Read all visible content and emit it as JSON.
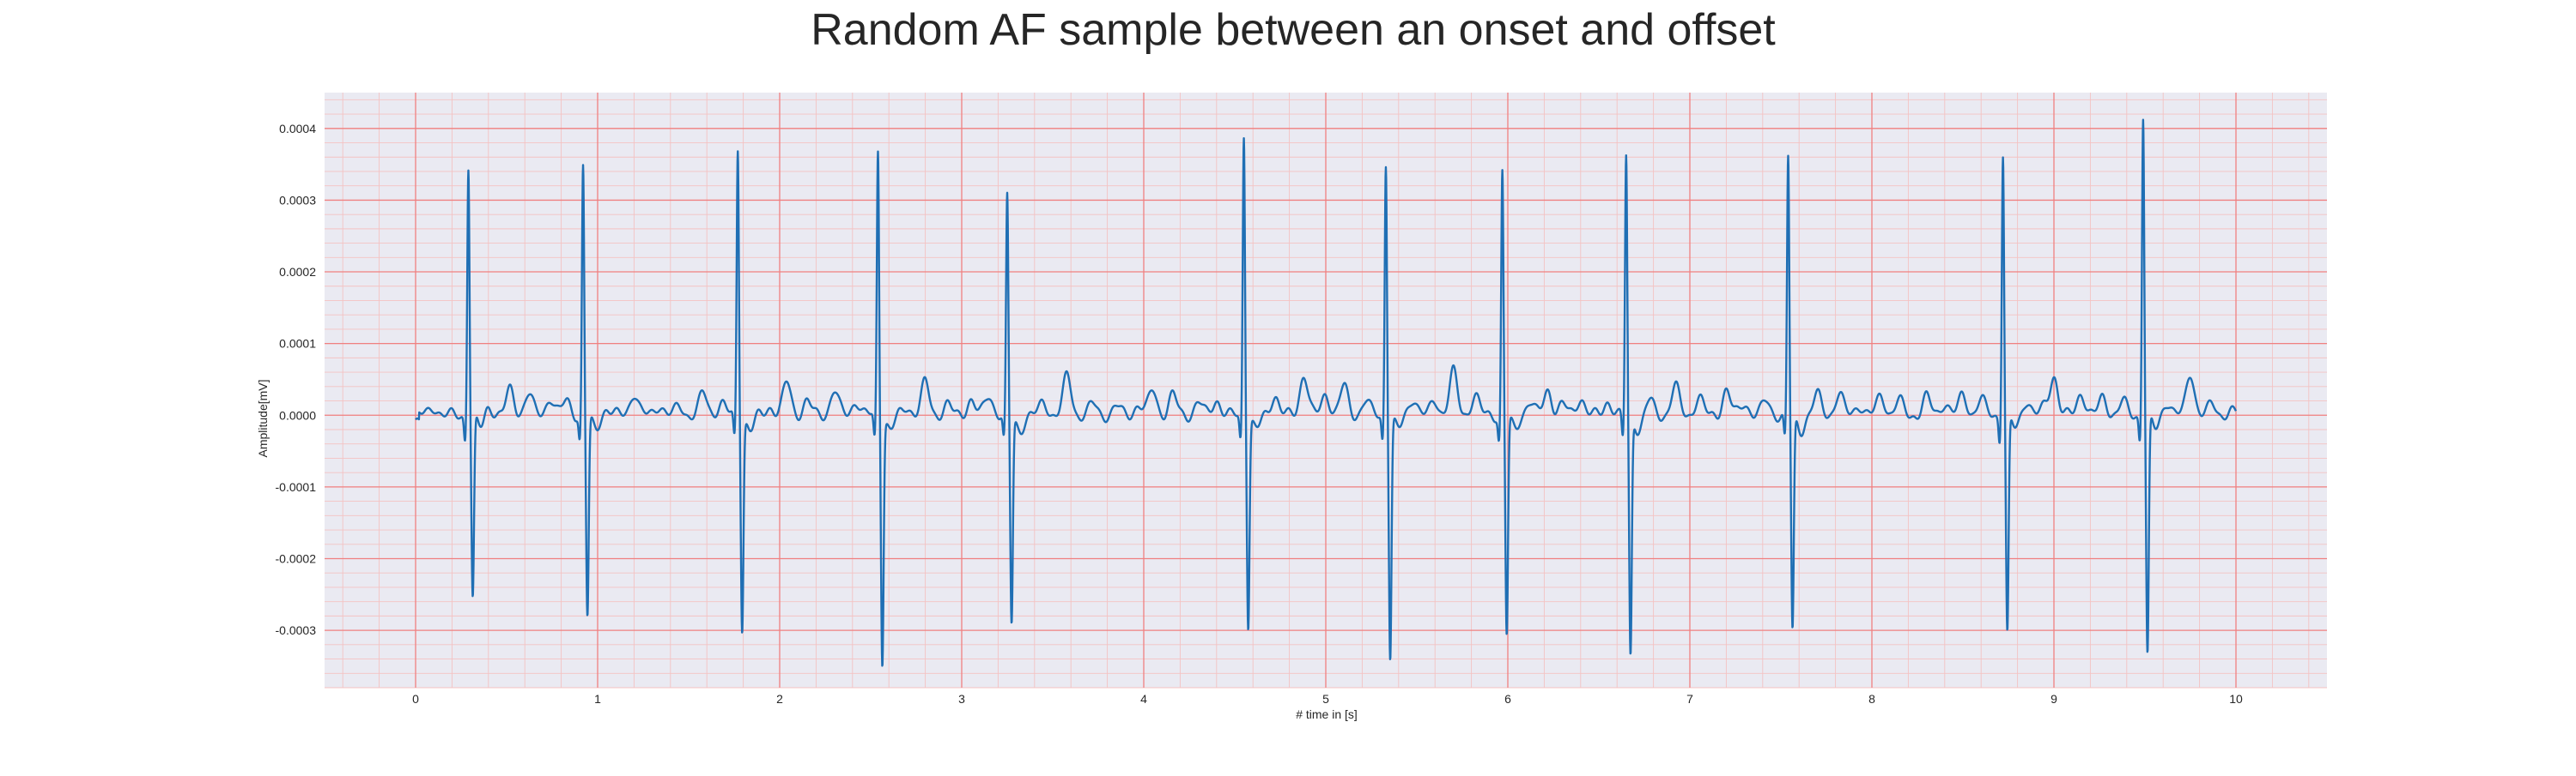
{
  "chart_data": {
    "type": "line",
    "title": "Random AF sample between an onset and offset",
    "xlabel": "# time in [s]",
    "ylabel": "Amplitude[mV]",
    "xlim": [
      -0.5,
      10.5
    ],
    "ylim": [
      -0.00038,
      0.00045
    ],
    "x_ticks": [
      0,
      1,
      2,
      3,
      4,
      5,
      6,
      7,
      8,
      9,
      10
    ],
    "x_tick_labels": [
      "0",
      "1",
      "2",
      "3",
      "4",
      "5",
      "6",
      "7",
      "8",
      "9",
      "10"
    ],
    "y_ticks": [
      0.0004,
      0.0003,
      0.0002,
      0.0001,
      0.0,
      -0.0001,
      -0.0002,
      -0.0003
    ],
    "y_tick_labels": [
      "0.0004",
      "0.0003",
      "0.0002",
      "0.0001",
      "0.0000",
      "-0.0001",
      "-0.0002",
      "-0.0003"
    ],
    "grid": true,
    "minor_grid": true,
    "grid_major_color": "#f08080",
    "grid_minor_color": "#f4c2c2",
    "background_color": "#eaeaf2",
    "line_color": "#1f6fb4",
    "beats": [
      {
        "t": 0.29,
        "peak": 0.00035,
        "trough": -0.000255
      },
      {
        "t": 0.92,
        "peak": 0.000348,
        "trough": -0.00028
      },
      {
        "t": 1.77,
        "peak": 0.000372,
        "trough": -0.000295
      },
      {
        "t": 2.54,
        "peak": 0.00037,
        "trough": -0.00034
      },
      {
        "t": 3.25,
        "peak": 0.000303,
        "trough": -0.00029
      },
      {
        "t": 4.55,
        "peak": 0.000392,
        "trough": -0.00029
      },
      {
        "t": 5.33,
        "peak": 0.000353,
        "trough": -0.000335
      },
      {
        "t": 5.97,
        "peak": 0.000342,
        "trough": -0.000305
      },
      {
        "t": 6.65,
        "peak": 0.000363,
        "trough": -0.000335
      },
      {
        "t": 7.54,
        "peak": 0.00036,
        "trough": -0.0003
      },
      {
        "t": 8.72,
        "peak": 0.000368,
        "trough": -0.000305
      },
      {
        "t": 9.49,
        "peak": 0.00042,
        "trough": -0.000335
      }
    ],
    "fibrillation_waves": [
      [
        0.1,
        1.2e-05
      ],
      [
        0.4,
        1.5e-05
      ],
      [
        0.52,
        3.5e-05
      ],
      [
        0.62,
        3e-05
      ],
      [
        0.74,
        2.5e-05
      ],
      [
        0.83,
        2e-05
      ],
      [
        1.05,
        1e-05
      ],
      [
        1.2,
        3.2e-05
      ],
      [
        1.34,
        1.5e-05
      ],
      [
        1.45,
        1.2e-05
      ],
      [
        1.58,
        3e-05
      ],
      [
        1.68,
        1.8e-05
      ],
      [
        1.95,
        1.2e-05
      ],
      [
        2.04,
        4.5e-05
      ],
      [
        2.15,
        2e-05
      ],
      [
        2.3,
        3.5e-05
      ],
      [
        2.42,
        2e-05
      ],
      [
        2.7,
        1.2e-05
      ],
      [
        2.8,
        4.5e-05
      ],
      [
        2.92,
        1.5e-05
      ],
      [
        3.05,
        2.2e-05
      ],
      [
        3.15,
        2.8e-05
      ],
      [
        3.45,
        1.8e-05
      ],
      [
        3.58,
        5.5e-05
      ],
      [
        3.72,
        1.5e-05
      ],
      [
        3.85,
        1.2e-05
      ],
      [
        3.97,
        1.5e-05
      ],
      [
        4.05,
        3.5e-05
      ],
      [
        4.16,
        2.8e-05
      ],
      [
        4.3,
        1.8e-05
      ],
      [
        4.4,
        2.2e-05
      ],
      [
        4.72,
        2.8e-05
      ],
      [
        4.88,
        5.8e-05
      ],
      [
        5.0,
        3e-05
      ],
      [
        5.1,
        4e-05
      ],
      [
        5.22,
        2e-05
      ],
      [
        5.48,
        2.5e-05
      ],
      [
        5.6,
        2e-05
      ],
      [
        5.7,
        6e-05
      ],
      [
        5.82,
        2.8e-05
      ],
      [
        6.12,
        2e-05
      ],
      [
        6.22,
        3.5e-05
      ],
      [
        6.3,
        1.5e-05
      ],
      [
        6.4,
        2.5e-05
      ],
      [
        6.55,
        2e-05
      ],
      [
        6.78,
        2e-05
      ],
      [
        6.92,
        4e-05
      ],
      [
        7.05,
        2.5e-05
      ],
      [
        7.2,
        3.5e-05
      ],
      [
        7.3,
        1.8e-05
      ],
      [
        7.42,
        2e-05
      ],
      [
        7.7,
        2.8e-05
      ],
      [
        7.82,
        3e-05
      ],
      [
        7.93,
        1.5e-05
      ],
      [
        8.05,
        2.8e-05
      ],
      [
        8.15,
        2e-05
      ],
      [
        8.3,
        2.5e-05
      ],
      [
        8.4,
        1.8e-05
      ],
      [
        8.5,
        2.8e-05
      ],
      [
        8.6,
        2.2e-05
      ],
      [
        8.85,
        2.2e-05
      ],
      [
        8.95,
        1e-05
      ],
      [
        9.0,
        5.5e-05
      ],
      [
        9.15,
        3.2e-05
      ],
      [
        9.27,
        2.5e-05
      ],
      [
        9.38,
        1.8e-05
      ],
      [
        9.62,
        2e-05
      ],
      [
        9.75,
        6e-05
      ],
      [
        9.87,
        1.5e-05
      ],
      [
        9.97,
        5e-06
      ]
    ]
  }
}
